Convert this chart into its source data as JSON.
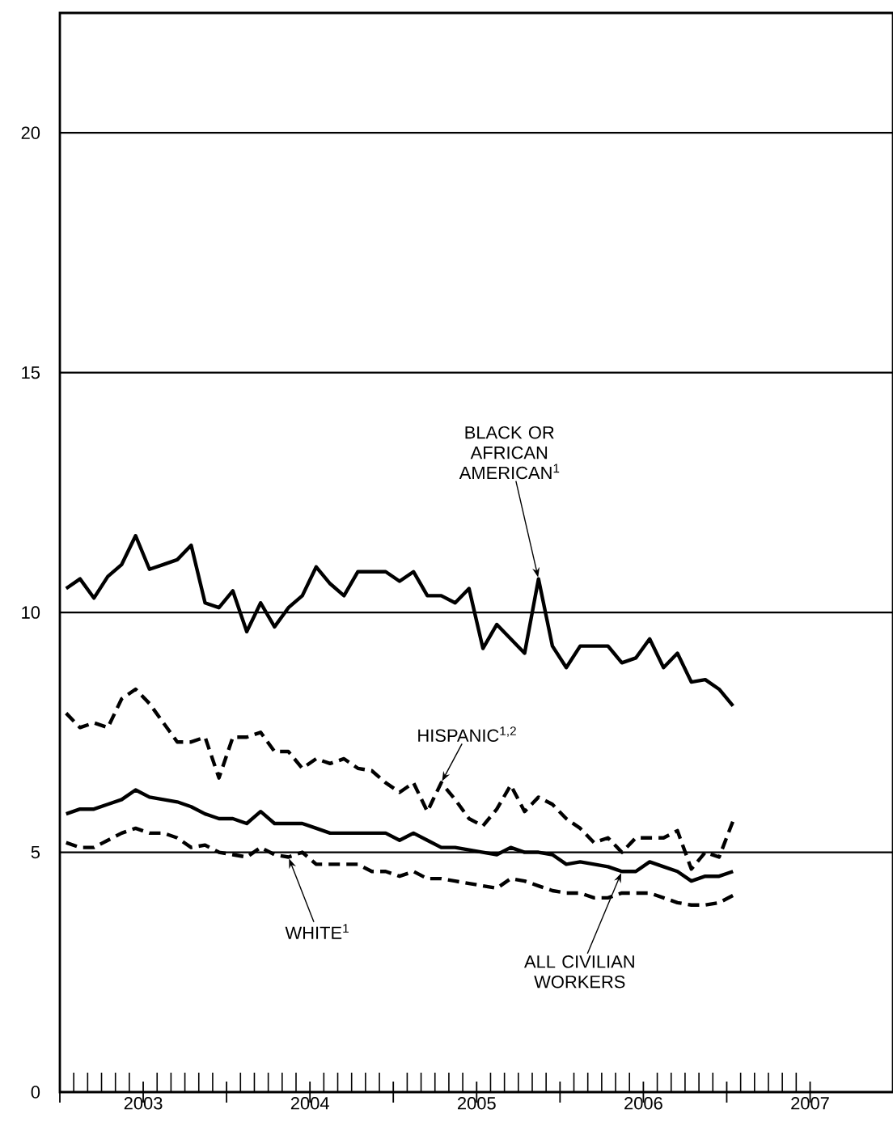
{
  "chart_data": {
    "type": "line",
    "x": [
      "2003-01-15",
      "2003-02-15",
      "2003-03-15",
      "2003-04-15",
      "2003-05-15",
      "2003-06-15",
      "2003-07-15",
      "2003-08-15",
      "2003-09-15",
      "2003-10-15",
      "2003-11-15",
      "2003-12-15",
      "2004-01-15",
      "2004-02-15",
      "2004-03-15",
      "2004-04-15",
      "2004-05-15",
      "2004-06-15",
      "2004-07-15",
      "2004-08-15",
      "2004-09-15",
      "2004-10-15",
      "2004-11-15",
      "2004-12-15",
      "2005-01-15",
      "2005-02-15",
      "2005-03-15",
      "2005-04-15",
      "2005-05-15",
      "2005-06-15",
      "2005-07-15",
      "2005-08-15",
      "2005-09-15",
      "2005-10-15",
      "2005-11-15",
      "2005-12-15",
      "2006-01-15",
      "2006-02-15",
      "2006-03-15",
      "2006-04-15",
      "2006-05-15",
      "2006-06-15",
      "2006-07-15",
      "2006-08-15",
      "2006-09-15",
      "2006-10-15",
      "2006-11-15",
      "2006-12-15",
      "2007-01-15"
    ],
    "series": [
      {
        "name": "BLACK OR AFRICAN AMERICAN$^{1}$",
        "color": "#000000",
        "line_style": "solid",
        "values": [
          10.5,
          10.7,
          10.3,
          10.75,
          11.0,
          11.6,
          10.9,
          11.0,
          11.1,
          11.4,
          10.2,
          10.1,
          10.45,
          9.6,
          10.2,
          9.7,
          10.1,
          10.35,
          10.95,
          10.6,
          10.35,
          10.85,
          10.85,
          10.85,
          10.65,
          10.85,
          10.35,
          10.35,
          10.2,
          10.5,
          9.25,
          9.75,
          9.45,
          9.15,
          10.7,
          9.3,
          8.85,
          9.3,
          9.3,
          9.3,
          8.95,
          9.05,
          9.45,
          8.85,
          9.15,
          8.55,
          8.6,
          8.4,
          8.05
        ]
      },
      {
        "name": "HISPANIC$^{1,2}$",
        "color": "#000000",
        "line_style": "dashed",
        "values": [
          7.9,
          7.6,
          7.7,
          7.6,
          8.2,
          8.4,
          8.1,
          7.7,
          7.3,
          7.3,
          7.4,
          6.55,
          7.4,
          7.4,
          7.5,
          7.1,
          7.1,
          6.75,
          6.95,
          6.85,
          6.95,
          6.75,
          6.7,
          6.45,
          6.25,
          6.45,
          5.85,
          6.45,
          6.1,
          5.7,
          5.55,
          5.9,
          6.4,
          5.85,
          6.15,
          6.0,
          5.7,
          5.5,
          5.2,
          5.3,
          5.0,
          5.3,
          5.3,
          5.3,
          5.45,
          4.65,
          5.0,
          4.9,
          5.65
        ]
      },
      {
        "name": "ALL CIVILIAN WORKERS",
        "color": "#000000",
        "line_style": "solid",
        "values": [
          5.8,
          5.9,
          5.9,
          6.0,
          6.1,
          6.3,
          6.15,
          6.1,
          6.05,
          5.95,
          5.8,
          5.7,
          5.7,
          5.6,
          5.85,
          5.6,
          5.6,
          5.6,
          5.5,
          5.4,
          5.4,
          5.4,
          5.4,
          5.4,
          5.25,
          5.4,
          5.25,
          5.1,
          5.1,
          5.05,
          5.0,
          4.95,
          5.1,
          5.0,
          5.0,
          4.95,
          4.75,
          4.8,
          4.75,
          4.7,
          4.6,
          4.6,
          4.8,
          4.7,
          4.6,
          4.4,
          4.5,
          4.5,
          4.6
        ]
      },
      {
        "name": "WHITE$^{1}$",
        "color": "#000000",
        "line_style": "dashed",
        "values": [
          5.2,
          5.1,
          5.1,
          5.25,
          5.4,
          5.5,
          5.4,
          5.4,
          5.3,
          5.1,
          5.15,
          5.0,
          4.95,
          4.9,
          5.1,
          4.95,
          4.9,
          5.0,
          4.75,
          4.75,
          4.75,
          4.75,
          4.6,
          4.6,
          4.5,
          4.6,
          4.45,
          4.45,
          4.4,
          4.35,
          4.3,
          4.25,
          4.45,
          4.4,
          4.3,
          4.2,
          4.15,
          4.15,
          4.05,
          4.05,
          4.15,
          4.15,
          4.15,
          4.05,
          3.95,
          3.9,
          3.9,
          3.95,
          4.1
        ]
      }
    ],
    "xlim": [
      "2003-01-01",
      "2007-12-31"
    ],
    "xticks": [
      {
        "value": "2003-01-01",
        "label": null
      },
      {
        "value": "2003-07-01",
        "label": "2003"
      },
      {
        "value": "2004-01-01",
        "label": null
      },
      {
        "value": "2004-07-01",
        "label": "2004"
      },
      {
        "value": "2005-01-01",
        "label": null
      },
      {
        "value": "2005-07-01",
        "label": "2005"
      },
      {
        "value": "2006-01-01",
        "label": null
      },
      {
        "value": "2006-07-01",
        "label": "2006"
      },
      {
        "value": "2007-01-01",
        "label": null
      },
      {
        "value": "2007-07-01",
        "label": "2007"
      }
    ],
    "ylim": [
      0,
      22.5
    ],
    "yticks": [
      0,
      5,
      10,
      15,
      20
    ],
    "grid": "y",
    "legend": false,
    "marker": "none"
  }
}
